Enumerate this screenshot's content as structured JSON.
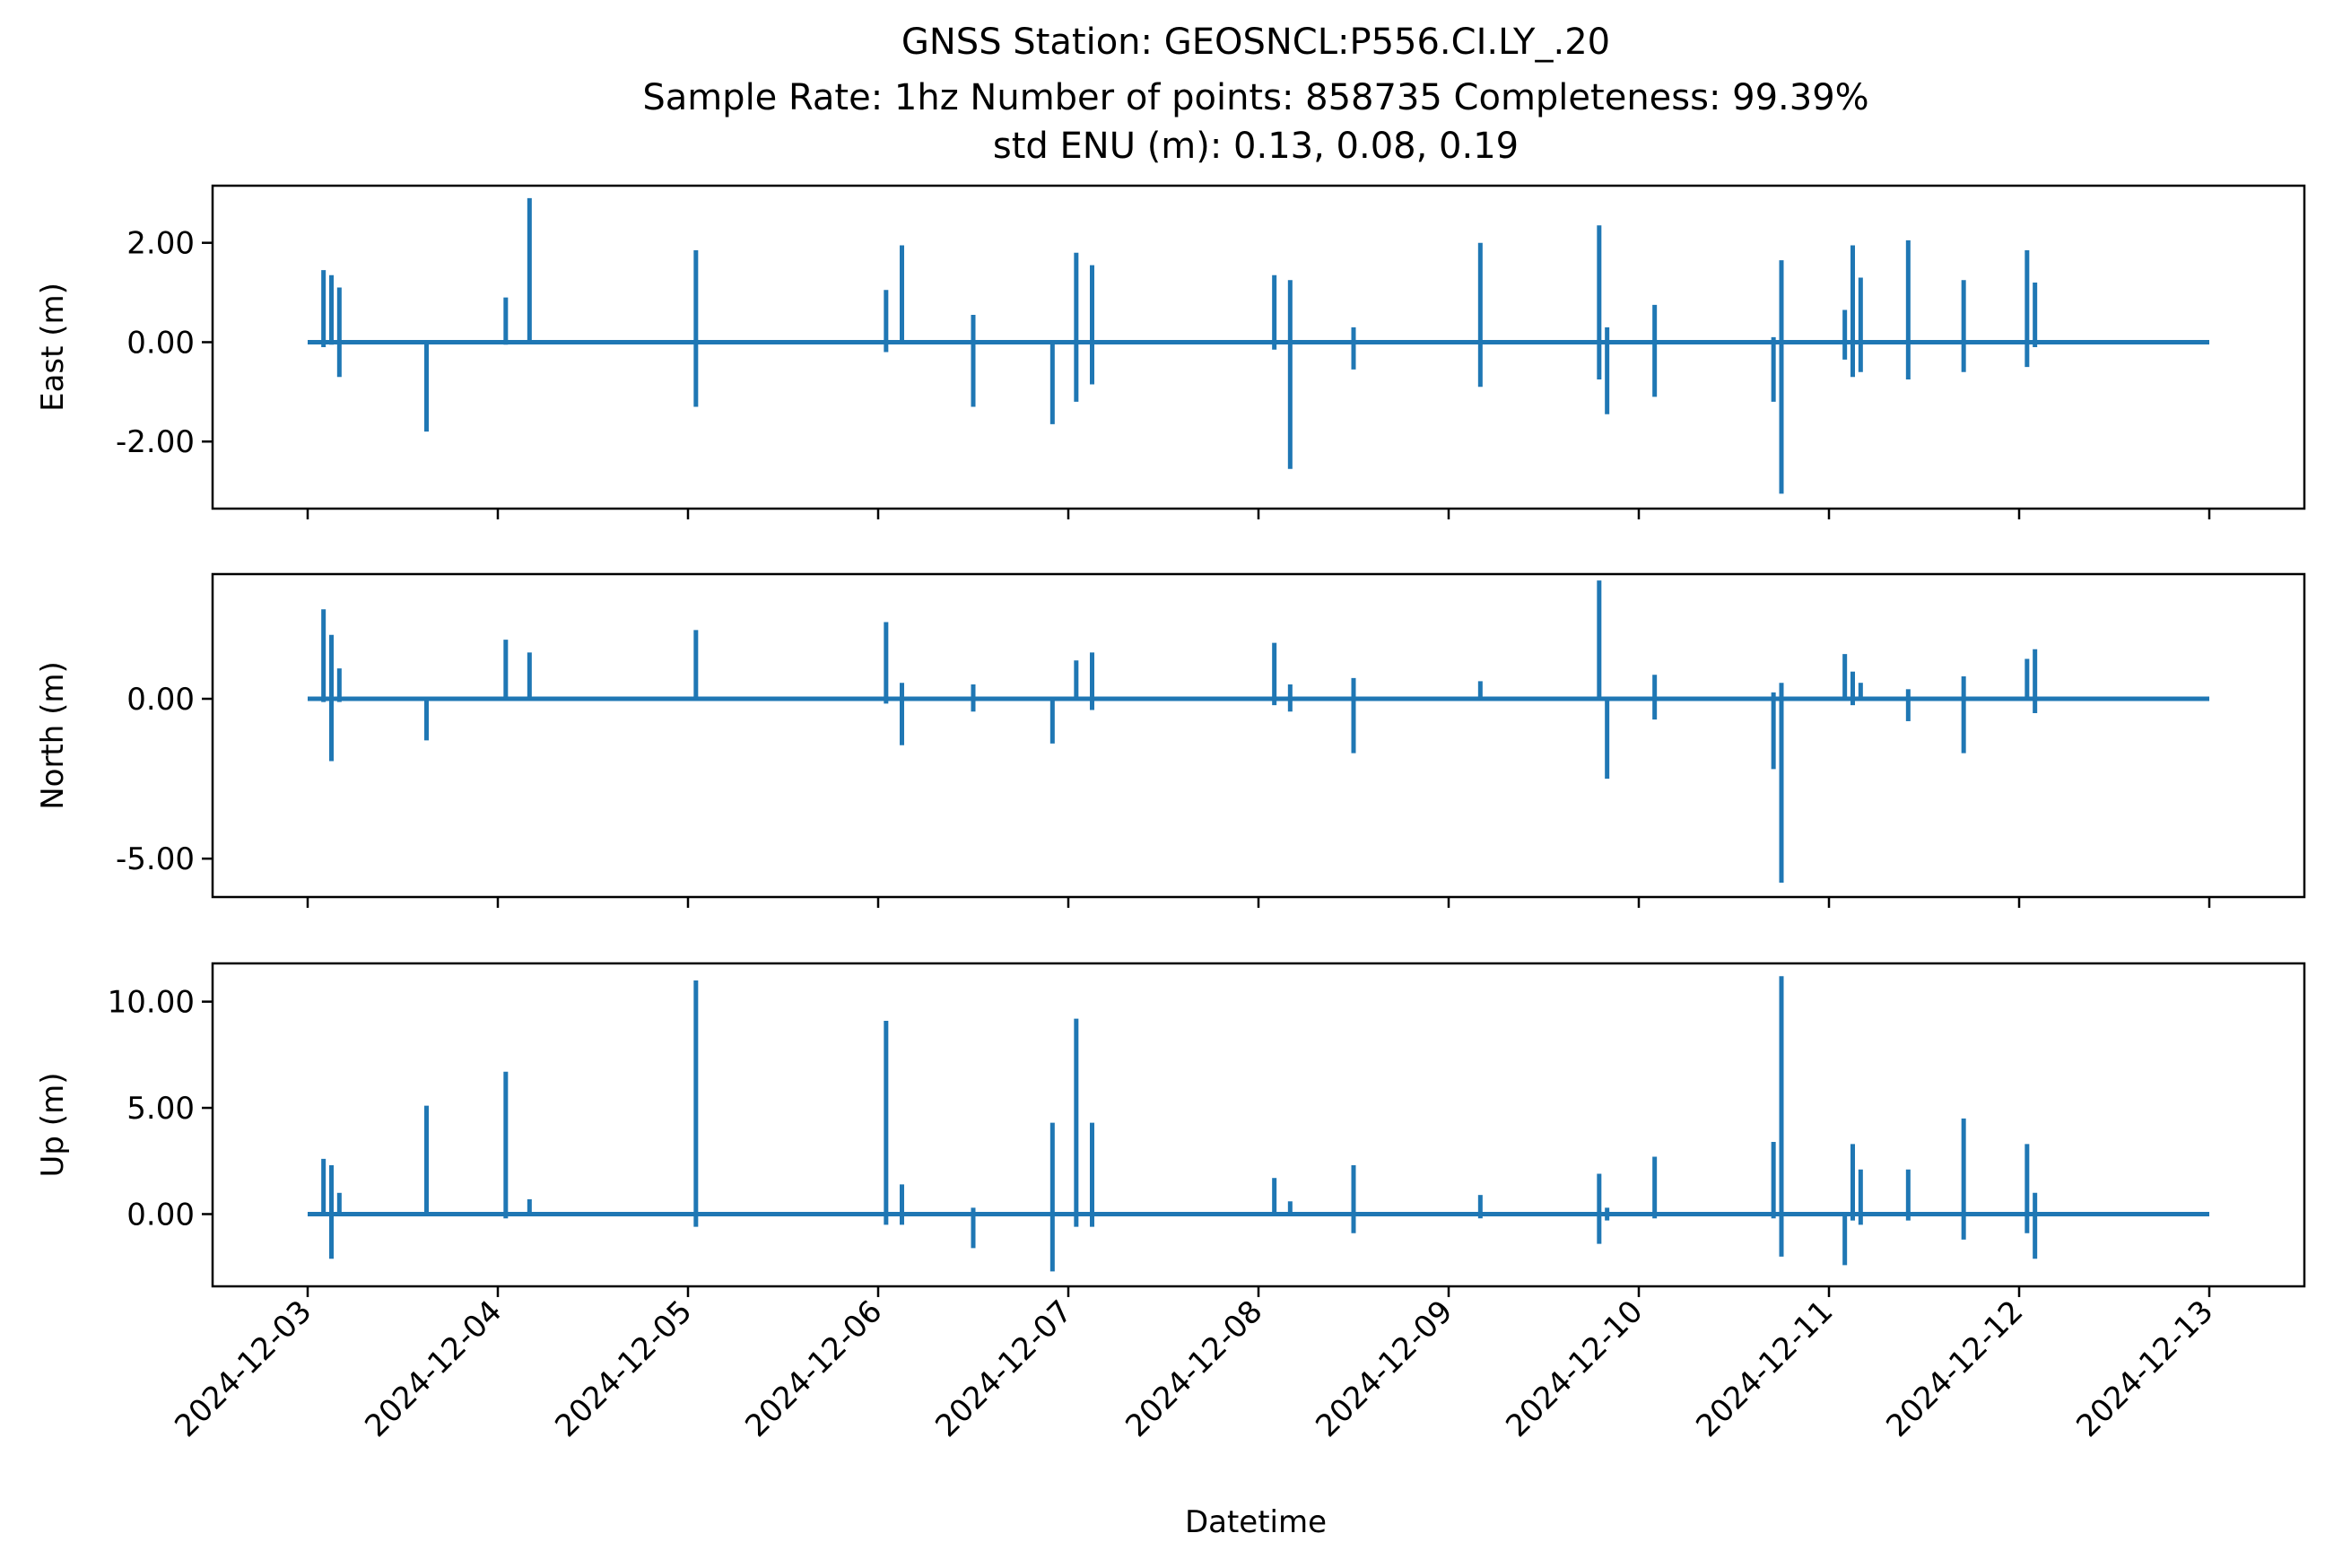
{
  "chart_data": {
    "type": "line",
    "title_lines": [
      "GNSS Station: GEOSNCL:P556.CI.LY_.20",
      "Sample Rate: 1hz   Number of points: 858735    Completeness:  99.39%",
      "std ENU (m):  0.13, 0.08, 0.19"
    ],
    "xlabel": "Datetime",
    "x_ticks": [
      "2024-12-03",
      "2024-12-04",
      "2024-12-05",
      "2024-12-06",
      "2024-12-07",
      "2024-12-08",
      "2024-12-09",
      "2024-12-10",
      "2024-12-11",
      "2024-12-12",
      "2024-12-13"
    ],
    "xlim": [
      "2024-12-02T12:00:00",
      "2024-12-13T12:00:00"
    ],
    "line_color": "#1f77b4",
    "panels": [
      {
        "ylabel": "East (m)",
        "ylim": [
          -3.35,
          3.15
        ],
        "y_ticks": [
          2.0,
          0.0,
          -2.0
        ],
        "y_tick_labels": [
          "2.00",
          "0.00",
          "-2.00"
        ],
        "spikes": [
          {
            "t": "2024-12-03T02:00",
            "min": -0.1,
            "max": 1.45
          },
          {
            "t": "2024-12-03T03:00",
            "min": -0.05,
            "max": 1.35
          },
          {
            "t": "2024-12-03T04:00",
            "min": -0.7,
            "max": 1.1
          },
          {
            "t": "2024-12-03T15:00",
            "min": -1.8,
            "max": 0.0
          },
          {
            "t": "2024-12-04T01:00",
            "min": -0.05,
            "max": 0.9
          },
          {
            "t": "2024-12-04T04:00",
            "min": 0.0,
            "max": 2.9
          },
          {
            "t": "2024-12-05T01:00",
            "min": -1.3,
            "max": 1.85
          },
          {
            "t": "2024-12-06T01:00",
            "min": -0.2,
            "max": 1.05
          },
          {
            "t": "2024-12-06T03:00",
            "min": 0.0,
            "max": 1.95
          },
          {
            "t": "2024-12-06T12:00",
            "min": -1.3,
            "max": 0.55
          },
          {
            "t": "2024-12-06T22:00",
            "min": -1.65,
            "max": 0.0
          },
          {
            "t": "2024-12-07T01:00",
            "min": -1.2,
            "max": 1.8
          },
          {
            "t": "2024-12-07T03:00",
            "min": -0.85,
            "max": 1.55
          },
          {
            "t": "2024-12-08T02:00",
            "min": -0.15,
            "max": 1.35
          },
          {
            "t": "2024-12-08T04:00",
            "min": -2.55,
            "max": 1.25
          },
          {
            "t": "2024-12-08T12:00",
            "min": -0.55,
            "max": 0.3
          },
          {
            "t": "2024-12-09T04:00",
            "min": -0.9,
            "max": 2.0
          },
          {
            "t": "2024-12-09T19:00",
            "min": -0.75,
            "max": 2.35
          },
          {
            "t": "2024-12-09T20:00",
            "min": -1.45,
            "max": 0.3
          },
          {
            "t": "2024-12-10T02:00",
            "min": -1.1,
            "max": 0.75
          },
          {
            "t": "2024-12-10T17:00",
            "min": -1.2,
            "max": 0.1
          },
          {
            "t": "2024-12-10T18:00",
            "min": -3.05,
            "max": 1.65
          },
          {
            "t": "2024-12-11T02:00",
            "min": -0.35,
            "max": 0.65
          },
          {
            "t": "2024-12-11T03:00",
            "min": -0.7,
            "max": 1.95
          },
          {
            "t": "2024-12-11T04:00",
            "min": -0.6,
            "max": 1.3
          },
          {
            "t": "2024-12-11T10:00",
            "min": -0.75,
            "max": 2.05
          },
          {
            "t": "2024-12-11T17:00",
            "min": -0.6,
            "max": 1.25
          },
          {
            "t": "2024-12-12T01:00",
            "min": -0.5,
            "max": 1.85
          },
          {
            "t": "2024-12-12T02:00",
            "min": -0.1,
            "max": 1.2
          }
        ]
      },
      {
        "ylabel": "North (m)",
        "ylim": [
          -6.2,
          3.9
        ],
        "y_ticks": [
          0.0,
          -5.0
        ],
        "y_tick_labels": [
          "0.00",
          "-5.00"
        ],
        "spikes": [
          {
            "t": "2024-12-03T02:00",
            "min": -0.1,
            "max": 2.8
          },
          {
            "t": "2024-12-03T03:00",
            "min": -1.95,
            "max": 2.0
          },
          {
            "t": "2024-12-03T04:00",
            "min": -0.1,
            "max": 0.95
          },
          {
            "t": "2024-12-03T15:00",
            "min": -1.3,
            "max": 0.0
          },
          {
            "t": "2024-12-04T01:00",
            "min": 0.0,
            "max": 1.85
          },
          {
            "t": "2024-12-04T04:00",
            "min": 0.0,
            "max": 1.45
          },
          {
            "t": "2024-12-05T01:00",
            "min": 0.0,
            "max": 2.15
          },
          {
            "t": "2024-12-06T01:00",
            "min": -0.15,
            "max": 2.4
          },
          {
            "t": "2024-12-06T03:00",
            "min": -1.45,
            "max": 0.5
          },
          {
            "t": "2024-12-06T12:00",
            "min": -0.4,
            "max": 0.45
          },
          {
            "t": "2024-12-06T22:00",
            "min": -1.4,
            "max": 0.0
          },
          {
            "t": "2024-12-07T01:00",
            "min": 0.0,
            "max": 1.2
          },
          {
            "t": "2024-12-07T03:00",
            "min": -0.35,
            "max": 1.45
          },
          {
            "t": "2024-12-08T02:00",
            "min": -0.2,
            "max": 1.75
          },
          {
            "t": "2024-12-08T04:00",
            "min": -0.4,
            "max": 0.45
          },
          {
            "t": "2024-12-08T12:00",
            "min": -1.7,
            "max": 0.65
          },
          {
            "t": "2024-12-09T04:00",
            "min": 0.0,
            "max": 0.55
          },
          {
            "t": "2024-12-09T19:00",
            "min": 0.0,
            "max": 3.7
          },
          {
            "t": "2024-12-09T20:00",
            "min": -2.5,
            "max": 0.0
          },
          {
            "t": "2024-12-10T02:00",
            "min": -0.65,
            "max": 0.75
          },
          {
            "t": "2024-12-10T17:00",
            "min": -2.2,
            "max": 0.2
          },
          {
            "t": "2024-12-10T18:00",
            "min": -5.75,
            "max": 0.5
          },
          {
            "t": "2024-12-11T02:00",
            "min": 0.0,
            "max": 1.4
          },
          {
            "t": "2024-12-11T03:00",
            "min": -0.2,
            "max": 0.85
          },
          {
            "t": "2024-12-11T04:00",
            "min": 0.0,
            "max": 0.5
          },
          {
            "t": "2024-12-11T10:00",
            "min": -0.7,
            "max": 0.3
          },
          {
            "t": "2024-12-11T17:00",
            "min": -1.7,
            "max": 0.7
          },
          {
            "t": "2024-12-12T01:00",
            "min": 0.0,
            "max": 1.25
          },
          {
            "t": "2024-12-12T02:00",
            "min": -0.45,
            "max": 1.55
          }
        ]
      },
      {
        "ylabel": "Up (m)",
        "ylim": [
          -3.4,
          11.8
        ],
        "y_ticks": [
          10.0,
          5.0,
          0.0
        ],
        "y_tick_labels": [
          "10.00",
          "5.00",
          "0.00"
        ],
        "spikes": [
          {
            "t": "2024-12-03T02:00",
            "min": 0.0,
            "max": 2.6
          },
          {
            "t": "2024-12-03T03:00",
            "min": -2.1,
            "max": 2.3
          },
          {
            "t": "2024-12-03T04:00",
            "min": -0.1,
            "max": 1.0
          },
          {
            "t": "2024-12-03T15:00",
            "min": 0.0,
            "max": 5.1
          },
          {
            "t": "2024-12-04T01:00",
            "min": -0.2,
            "max": 6.7
          },
          {
            "t": "2024-12-04T04:00",
            "min": 0.0,
            "max": 0.7
          },
          {
            "t": "2024-12-05T01:00",
            "min": -0.6,
            "max": 11.0
          },
          {
            "t": "2024-12-06T01:00",
            "min": -0.5,
            "max": 9.1
          },
          {
            "t": "2024-12-06T03:00",
            "min": -0.5,
            "max": 1.4
          },
          {
            "t": "2024-12-06T12:00",
            "min": -1.6,
            "max": 0.3
          },
          {
            "t": "2024-12-06T22:00",
            "min": -2.7,
            "max": 4.3
          },
          {
            "t": "2024-12-07T01:00",
            "min": -0.6,
            "max": 9.2
          },
          {
            "t": "2024-12-07T03:00",
            "min": -0.6,
            "max": 4.3
          },
          {
            "t": "2024-12-08T02:00",
            "min": 0.0,
            "max": 1.7
          },
          {
            "t": "2024-12-08T04:00",
            "min": 0.0,
            "max": 0.6
          },
          {
            "t": "2024-12-08T12:00",
            "min": -0.9,
            "max": 2.3
          },
          {
            "t": "2024-12-09T04:00",
            "min": -0.2,
            "max": 0.9
          },
          {
            "t": "2024-12-09T19:00",
            "min": -1.4,
            "max": 1.9
          },
          {
            "t": "2024-12-09T20:00",
            "min": -0.3,
            "max": 0.3
          },
          {
            "t": "2024-12-10T02:00",
            "min": -0.2,
            "max": 2.7
          },
          {
            "t": "2024-12-10T17:00",
            "min": -0.2,
            "max": 3.4
          },
          {
            "t": "2024-12-10T18:00",
            "min": -2.0,
            "max": 11.2
          },
          {
            "t": "2024-12-11T02:00",
            "min": -2.4,
            "max": 0.1
          },
          {
            "t": "2024-12-11T03:00",
            "min": -0.3,
            "max": 3.3
          },
          {
            "t": "2024-12-11T04:00",
            "min": -0.5,
            "max": 2.1
          },
          {
            "t": "2024-12-11T10:00",
            "min": -0.3,
            "max": 2.1
          },
          {
            "t": "2024-12-11T17:00",
            "min": -1.2,
            "max": 4.5
          },
          {
            "t": "2024-12-12T01:00",
            "min": -0.9,
            "max": 3.3
          },
          {
            "t": "2024-12-12T02:00",
            "min": -2.1,
            "max": 1.0
          }
        ]
      }
    ]
  }
}
